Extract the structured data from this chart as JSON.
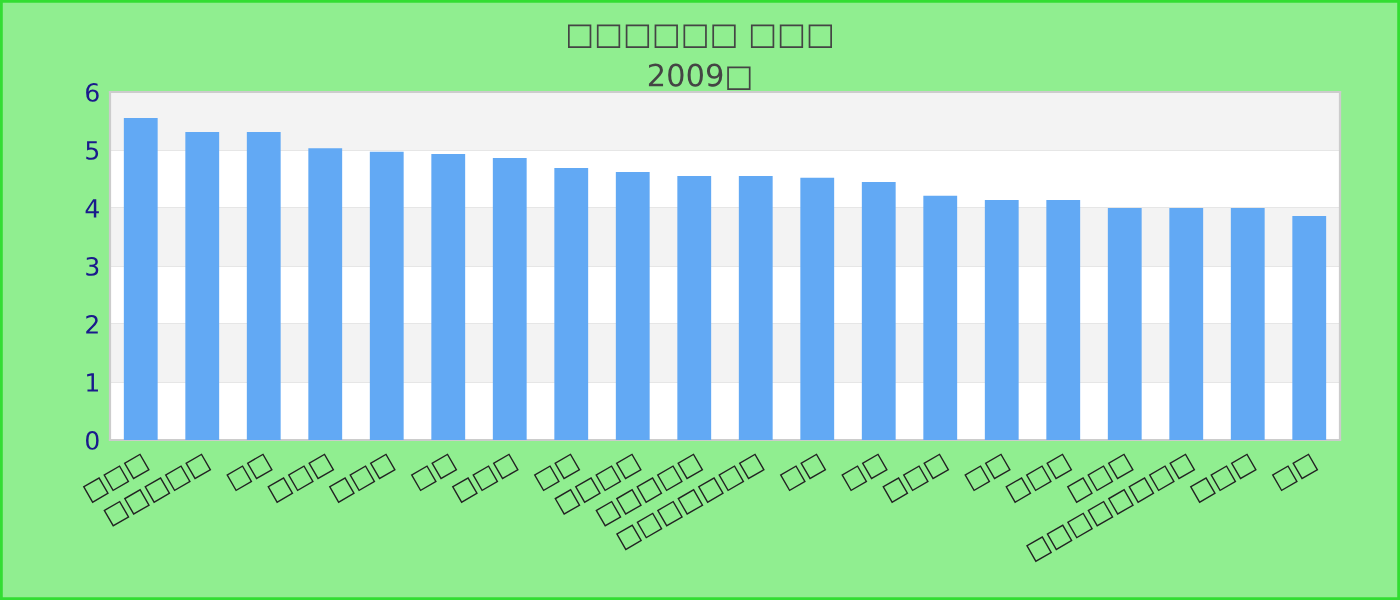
{
  "chart_data": {
    "type": "bar",
    "title": "□□□□□□ □□□",
    "subtitle": "2009□",
    "categories": [
      "□□□",
      "□□□□□",
      "□□",
      "□□□",
      "□□□",
      "□□",
      "□□□",
      "□□",
      "□□□□",
      "□□□□□",
      "□□□□□□□",
      "□□",
      "□□",
      "□□□",
      "□□",
      "□□□",
      "□□□",
      "□□□□□□□□",
      "□□□",
      "□□"
    ],
    "values": [
      5.55,
      5.31,
      5.31,
      5.03,
      4.97,
      4.93,
      4.86,
      4.69,
      4.62,
      4.55,
      4.55,
      4.52,
      4.45,
      4.21,
      4.14,
      4.14,
      4.0,
      4.0,
      4.0,
      3.86
    ],
    "color": "#62a9f4",
    "ylim": [
      0,
      6
    ],
    "yticks": [
      0,
      1,
      2,
      3,
      4,
      5,
      6
    ],
    "grid": "y",
    "legend": false
  }
}
